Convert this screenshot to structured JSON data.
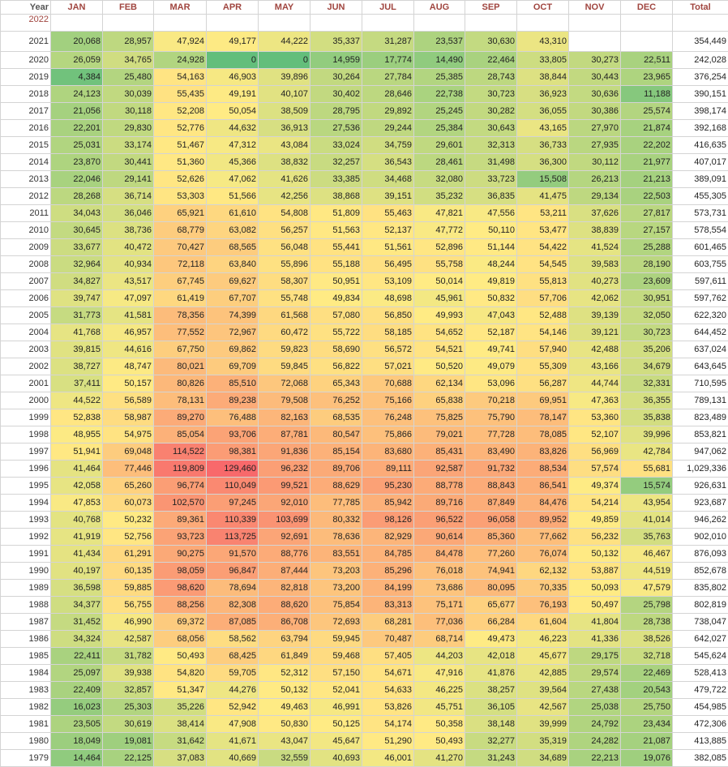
{
  "table": {
    "header": [
      "Year",
      "JAN",
      "FEB",
      "MAR",
      "APR",
      "MAY",
      "JUN",
      "JUL",
      "AUG",
      "SEP",
      "OCT",
      "NOV",
      "DEC",
      "Total"
    ],
    "rows": [
      [
        "2022",
        null,
        null,
        null,
        null,
        null,
        null,
        null,
        null,
        null,
        null,
        null,
        null,
        null
      ],
      [
        "2021",
        "20,068",
        "28,957",
        "47,924",
        "49,177",
        "44,222",
        "35,337",
        "31,287",
        "23,537",
        "30,630",
        "43,310",
        null,
        null,
        "354,449"
      ],
      [
        "2020",
        "26,059",
        "34,765",
        "24,928",
        "0",
        "0",
        "14,959",
        "17,774",
        "14,490",
        "22,464",
        "33,805",
        "30,273",
        "22,511",
        "242,028"
      ],
      [
        "2019",
        "4,384",
        "25,480",
        "54,163",
        "46,903",
        "39,896",
        "30,264",
        "27,784",
        "25,385",
        "28,743",
        "38,844",
        "30,443",
        "23,965",
        "376,254"
      ],
      [
        "2018",
        "24,123",
        "30,039",
        "55,435",
        "49,191",
        "40,107",
        "30,402",
        "28,646",
        "22,738",
        "30,723",
        "36,923",
        "30,636",
        "11,188",
        "390,151"
      ],
      [
        "2017",
        "21,056",
        "30,118",
        "52,208",
        "50,054",
        "38,509",
        "28,795",
        "29,892",
        "25,245",
        "30,282",
        "36,055",
        "30,386",
        "25,574",
        "398,174"
      ],
      [
        "2016",
        "22,201",
        "29,830",
        "52,776",
        "44,632",
        "36,913",
        "27,536",
        "29,244",
        "25,384",
        "30,643",
        "43,165",
        "27,970",
        "21,874",
        "392,168"
      ],
      [
        "2015",
        "25,031",
        "33,174",
        "51,467",
        "47,312",
        "43,084",
        "33,024",
        "34,759",
        "29,601",
        "32,313",
        "36,733",
        "27,935",
        "22,202",
        "416,635"
      ],
      [
        "2014",
        "23,870",
        "30,441",
        "51,360",
        "45,366",
        "38,832",
        "32,257",
        "36,543",
        "28,461",
        "31,498",
        "36,300",
        "30,112",
        "21,977",
        "407,017"
      ],
      [
        "2013",
        "22,046",
        "29,141",
        "52,626",
        "47,062",
        "41,626",
        "33,385",
        "34,468",
        "32,080",
        "33,723",
        "15,508",
        "26,213",
        "21,213",
        "389,091"
      ],
      [
        "2012",
        "28,268",
        "36,714",
        "53,303",
        "51,566",
        "42,256",
        "38,868",
        "39,151",
        "35,232",
        "36,835",
        "41,475",
        "29,134",
        "22,503",
        "455,305"
      ],
      [
        "2011",
        "34,043",
        "36,046",
        "65,921",
        "61,610",
        "54,808",
        "51,809",
        "55,463",
        "47,821",
        "47,556",
        "53,211",
        "37,626",
        "27,817",
        "573,731"
      ],
      [
        "2010",
        "30,645",
        "38,736",
        "68,779",
        "63,082",
        "56,257",
        "51,563",
        "52,137",
        "47,772",
        "50,110",
        "53,477",
        "38,839",
        "27,157",
        "578,554"
      ],
      [
        "2009",
        "33,677",
        "40,472",
        "70,427",
        "68,565",
        "56,048",
        "55,441",
        "51,561",
        "52,896",
        "51,144",
        "54,422",
        "41,524",
        "25,288",
        "601,465"
      ],
      [
        "2008",
        "32,964",
        "40,934",
        "72,118",
        "63,840",
        "55,896",
        "55,188",
        "56,495",
        "55,758",
        "48,244",
        "54,545",
        "39,583",
        "28,190",
        "603,755"
      ],
      [
        "2007",
        "34,827",
        "43,517",
        "67,745",
        "69,627",
        "58,307",
        "50,951",
        "53,109",
        "50,014",
        "49,819",
        "55,813",
        "40,273",
        "23,609",
        "597,611"
      ],
      [
        "2006",
        "39,747",
        "47,097",
        "61,419",
        "67,707",
        "55,748",
        "49,834",
        "48,698",
        "45,961",
        "50,832",
        "57,706",
        "42,062",
        "30,951",
        "597,762"
      ],
      [
        "2005",
        "31,773",
        "41,581",
        "78,356",
        "74,399",
        "61,568",
        "57,080",
        "56,850",
        "49,993",
        "47,043",
        "52,488",
        "39,139",
        "32,050",
        "622,320"
      ],
      [
        "2004",
        "41,768",
        "46,957",
        "77,552",
        "72,967",
        "60,472",
        "55,722",
        "58,185",
        "54,652",
        "52,187",
        "54,146",
        "39,121",
        "30,723",
        "644,452"
      ],
      [
        "2003",
        "39,815",
        "44,616",
        "67,750",
        "69,862",
        "59,823",
        "58,690",
        "56,572",
        "54,521",
        "49,741",
        "57,940",
        "42,488",
        "35,206",
        "637,024"
      ],
      [
        "2002",
        "38,727",
        "48,747",
        "80,021",
        "69,709",
        "59,845",
        "56,822",
        "57,021",
        "50,520",
        "49,079",
        "55,309",
        "43,166",
        "34,679",
        "643,645"
      ],
      [
        "2001",
        "37,411",
        "50,157",
        "80,826",
        "85,510",
        "72,068",
        "65,343",
        "70,688",
        "62,134",
        "53,096",
        "56,287",
        "44,744",
        "32,331",
        "710,595"
      ],
      [
        "2000",
        "44,522",
        "56,589",
        "78,131",
        "89,238",
        "79,508",
        "76,252",
        "75,166",
        "65,838",
        "70,218",
        "69,951",
        "47,363",
        "36,355",
        "789,131"
      ],
      [
        "1999",
        "52,838",
        "58,987",
        "89,270",
        "76,488",
        "82,163",
        "68,535",
        "76,248",
        "75,825",
        "75,790",
        "78,147",
        "53,360",
        "35,838",
        "823,489"
      ],
      [
        "1998",
        "48,955",
        "54,975",
        "85,054",
        "93,706",
        "87,781",
        "80,547",
        "75,866",
        "79,021",
        "77,728",
        "78,085",
        "52,107",
        "39,996",
        "853,821"
      ],
      [
        "1997",
        "51,941",
        "69,048",
        "114,522",
        "98,381",
        "91,836",
        "85,154",
        "83,680",
        "85,431",
        "83,490",
        "83,826",
        "56,969",
        "42,784",
        "947,062"
      ],
      [
        "1996",
        "41,464",
        "77,446",
        "119,809",
        "129,460",
        "96,232",
        "89,706",
        "89,111",
        "92,587",
        "91,732",
        "88,534",
        "57,574",
        "55,681",
        "1,029,336"
      ],
      [
        "1995",
        "42,058",
        "65,260",
        "96,774",
        "110,049",
        "99,521",
        "88,629",
        "95,230",
        "88,778",
        "88,843",
        "86,541",
        "49,374",
        "15,574",
        "926,631"
      ],
      [
        "1994",
        "47,853",
        "60,073",
        "102,570",
        "97,245",
        "92,010",
        "77,785",
        "85,942",
        "89,716",
        "87,849",
        "84,476",
        "54,214",
        "43,954",
        "923,687"
      ],
      [
        "1993",
        "40,768",
        "50,232",
        "89,361",
        "110,339",
        "103,699",
        "80,332",
        "98,126",
        "96,522",
        "96,058",
        "89,952",
        "49,859",
        "41,014",
        "946,262"
      ],
      [
        "1992",
        "41,919",
        "52,756",
        "93,723",
        "113,725",
        "92,691",
        "78,636",
        "82,929",
        "90,614",
        "85,360",
        "77,662",
        "56,232",
        "35,763",
        "902,010"
      ],
      [
        "1991",
        "41,434",
        "61,291",
        "90,275",
        "91,570",
        "88,776",
        "83,551",
        "84,785",
        "84,478",
        "77,260",
        "76,074",
        "50,132",
        "46,467",
        "876,093"
      ],
      [
        "1990",
        "40,197",
        "60,135",
        "98,059",
        "96,847",
        "87,444",
        "73,203",
        "85,296",
        "76,018",
        "74,941",
        "62,132",
        "53,887",
        "44,519",
        "852,678"
      ],
      [
        "1989",
        "36,598",
        "59,885",
        "98,620",
        "78,694",
        "82,818",
        "73,200",
        "84,199",
        "73,686",
        "80,095",
        "70,335",
        "50,093",
        "47,579",
        "835,802"
      ],
      [
        "1988",
        "34,377",
        "56,755",
        "88,256",
        "82,308",
        "88,620",
        "75,854",
        "83,313",
        "75,171",
        "65,677",
        "76,193",
        "50,497",
        "25,798",
        "802,819"
      ],
      [
        "1987",
        "31,452",
        "46,990",
        "69,372",
        "87,085",
        "86,708",
        "72,693",
        "68,281",
        "77,036",
        "66,284",
        "61,604",
        "41,804",
        "28,738",
        "738,047"
      ],
      [
        "1986",
        "34,324",
        "42,587",
        "68,056",
        "58,562",
        "63,794",
        "59,945",
        "70,487",
        "68,714",
        "49,473",
        "46,223",
        "41,336",
        "38,526",
        "642,027"
      ],
      [
        "1985",
        "22,411",
        "31,782",
        "50,493",
        "68,425",
        "61,849",
        "59,468",
        "57,405",
        "44,203",
        "42,018",
        "45,677",
        "29,175",
        "32,718",
        "545,624"
      ],
      [
        "1984",
        "25,097",
        "39,938",
        "54,820",
        "59,705",
        "52,312",
        "57,150",
        "54,671",
        "47,916",
        "41,876",
        "42,885",
        "29,574",
        "22,469",
        "528,413"
      ],
      [
        "1983",
        "22,409",
        "32,857",
        "51,347",
        "44,276",
        "50,132",
        "52,041",
        "54,633",
        "46,225",
        "38,257",
        "39,564",
        "27,438",
        "20,543",
        "479,722"
      ],
      [
        "1982",
        "16,023",
        "25,303",
        "35,226",
        "52,942",
        "49,463",
        "46,991",
        "53,826",
        "45,751",
        "36,105",
        "42,567",
        "25,038",
        "25,750",
        "454,985"
      ],
      [
        "1981",
        "23,505",
        "30,619",
        "38,414",
        "47,908",
        "50,830",
        "50,125",
        "54,174",
        "50,358",
        "38,148",
        "39,999",
        "24,792",
        "23,434",
        "472,306"
      ],
      [
        "1980",
        "18,049",
        "19,081",
        "31,642",
        "41,671",
        "43,047",
        "45,647",
        "51,290",
        "50,493",
        "32,277",
        "35,319",
        "24,282",
        "21,087",
        "413,885"
      ],
      [
        "1979",
        "14,464",
        "22,125",
        "37,083",
        "40,669",
        "32,559",
        "40,693",
        "46,001",
        "41,270",
        "31,243",
        "34,689",
        "22,213",
        "19,076",
        "382,085"
      ]
    ]
  }
}
